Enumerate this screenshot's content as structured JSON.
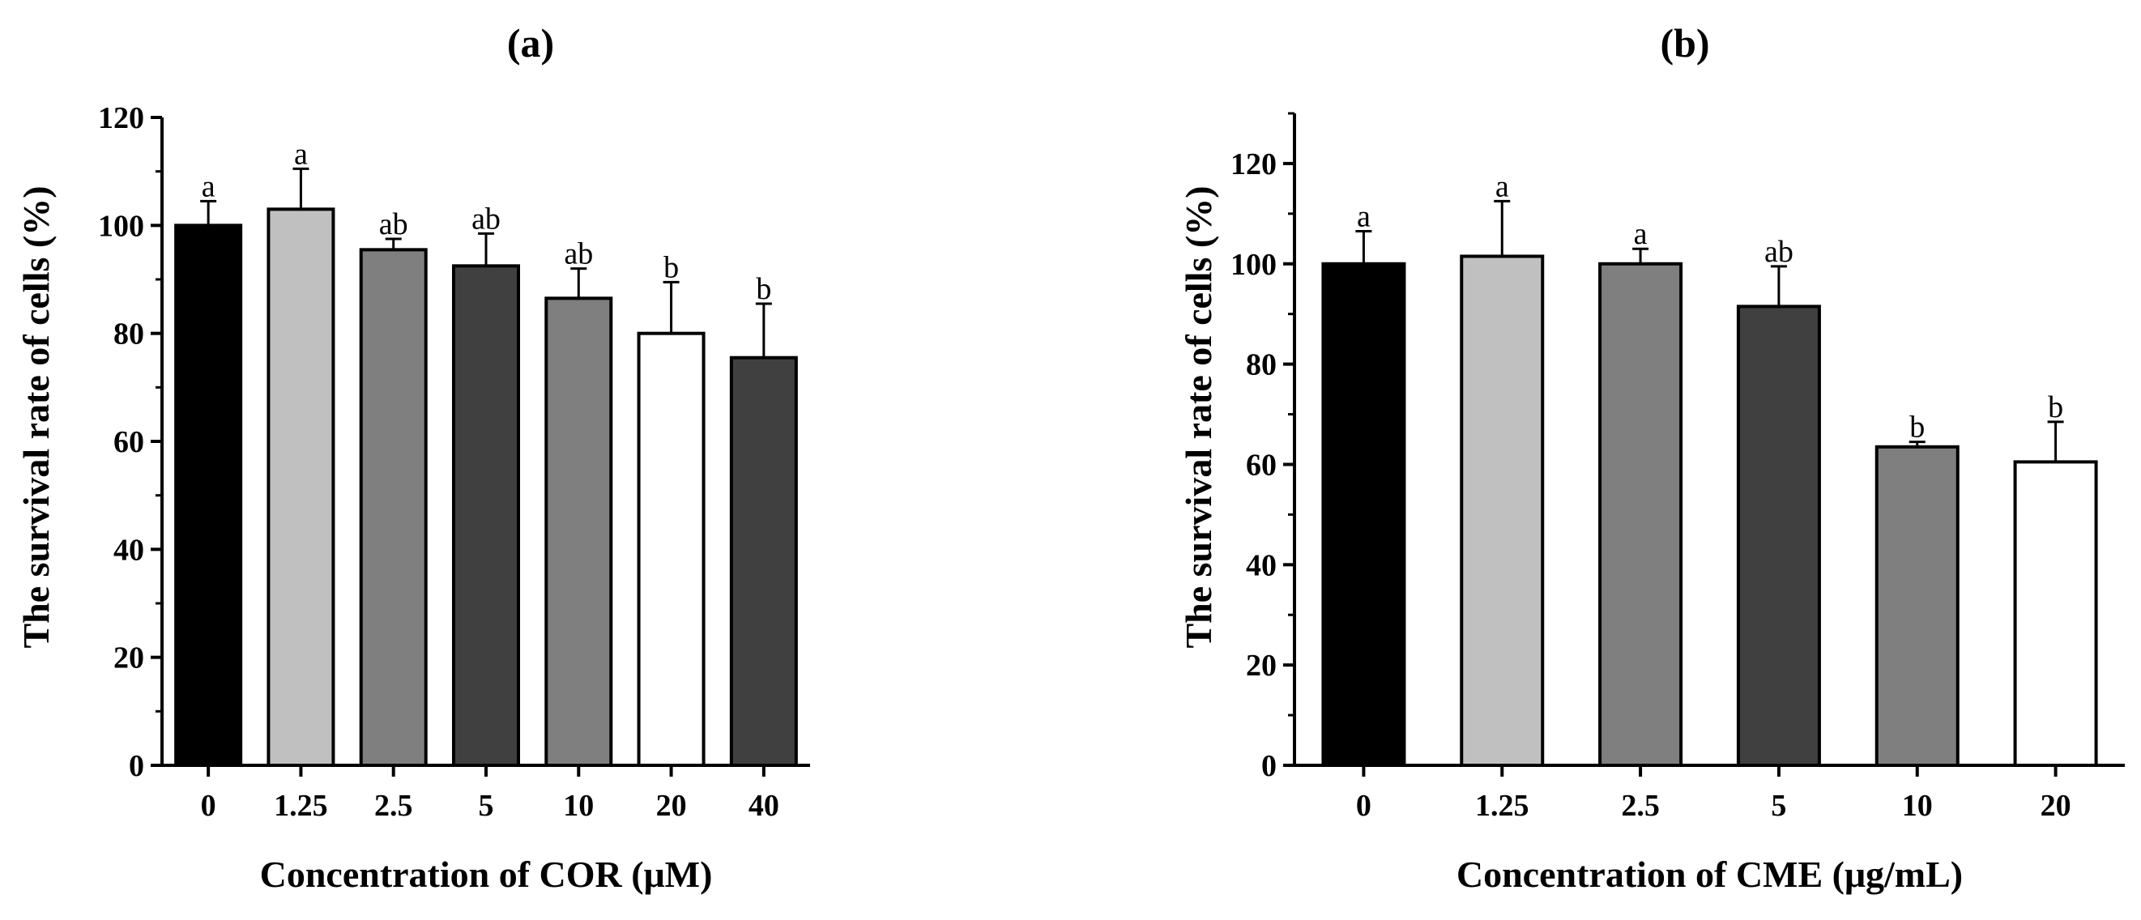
{
  "chart_data": [
    {
      "type": "bar",
      "title": "(a)",
      "xlabel": "Concentration of COR (μM)",
      "ylabel": "The survival rate of cells (%)",
      "categories": [
        "0",
        "1.25",
        "2.5",
        "5",
        "10",
        "20",
        "40"
      ],
      "values": [
        100,
        103,
        95.5,
        92.5,
        86.5,
        80,
        75.5
      ],
      "errors": [
        4.5,
        7.5,
        2,
        6,
        5.5,
        9.5,
        10
      ],
      "significance": [
        "a",
        "a",
        "ab",
        "ab",
        "ab",
        "b",
        "b"
      ],
      "bar_colors": [
        "#000000",
        "#c0c0c0",
        "#7f7f7f",
        "#404040",
        "#7f7f7f",
        "#ffffff",
        "#404040"
      ],
      "ylim": [
        0,
        120
      ],
      "yticks": [
        "0",
        "20",
        "40",
        "60",
        "80",
        "100",
        "120"
      ],
      "ytick_values": [
        0,
        20,
        40,
        60,
        80,
        100,
        120
      ]
    },
    {
      "type": "bar",
      "title": "(b)",
      "xlabel": "Concentration of CME (μg/mL)",
      "ylabel": "The survival rate of cells (%)",
      "categories": [
        "0",
        "1.25",
        "2.5",
        "5",
        "10",
        "20"
      ],
      "values": [
        100,
        101.5,
        100,
        91.5,
        63.5,
        60.5
      ],
      "errors": [
        6.5,
        11,
        3,
        8,
        1,
        8
      ],
      "significance": [
        "a",
        "a",
        "a",
        "ab",
        "b",
        "b"
      ],
      "bar_colors": [
        "#000000",
        "#c0c0c0",
        "#7f7f7f",
        "#404040",
        "#7f7f7f",
        "#ffffff"
      ],
      "ylim": [
        0,
        130
      ],
      "yticks": [
        "0",
        "20",
        "40",
        "60",
        "80",
        "100",
        "120"
      ],
      "ytick_values": [
        0,
        20,
        40,
        60,
        80,
        100,
        120
      ]
    }
  ]
}
